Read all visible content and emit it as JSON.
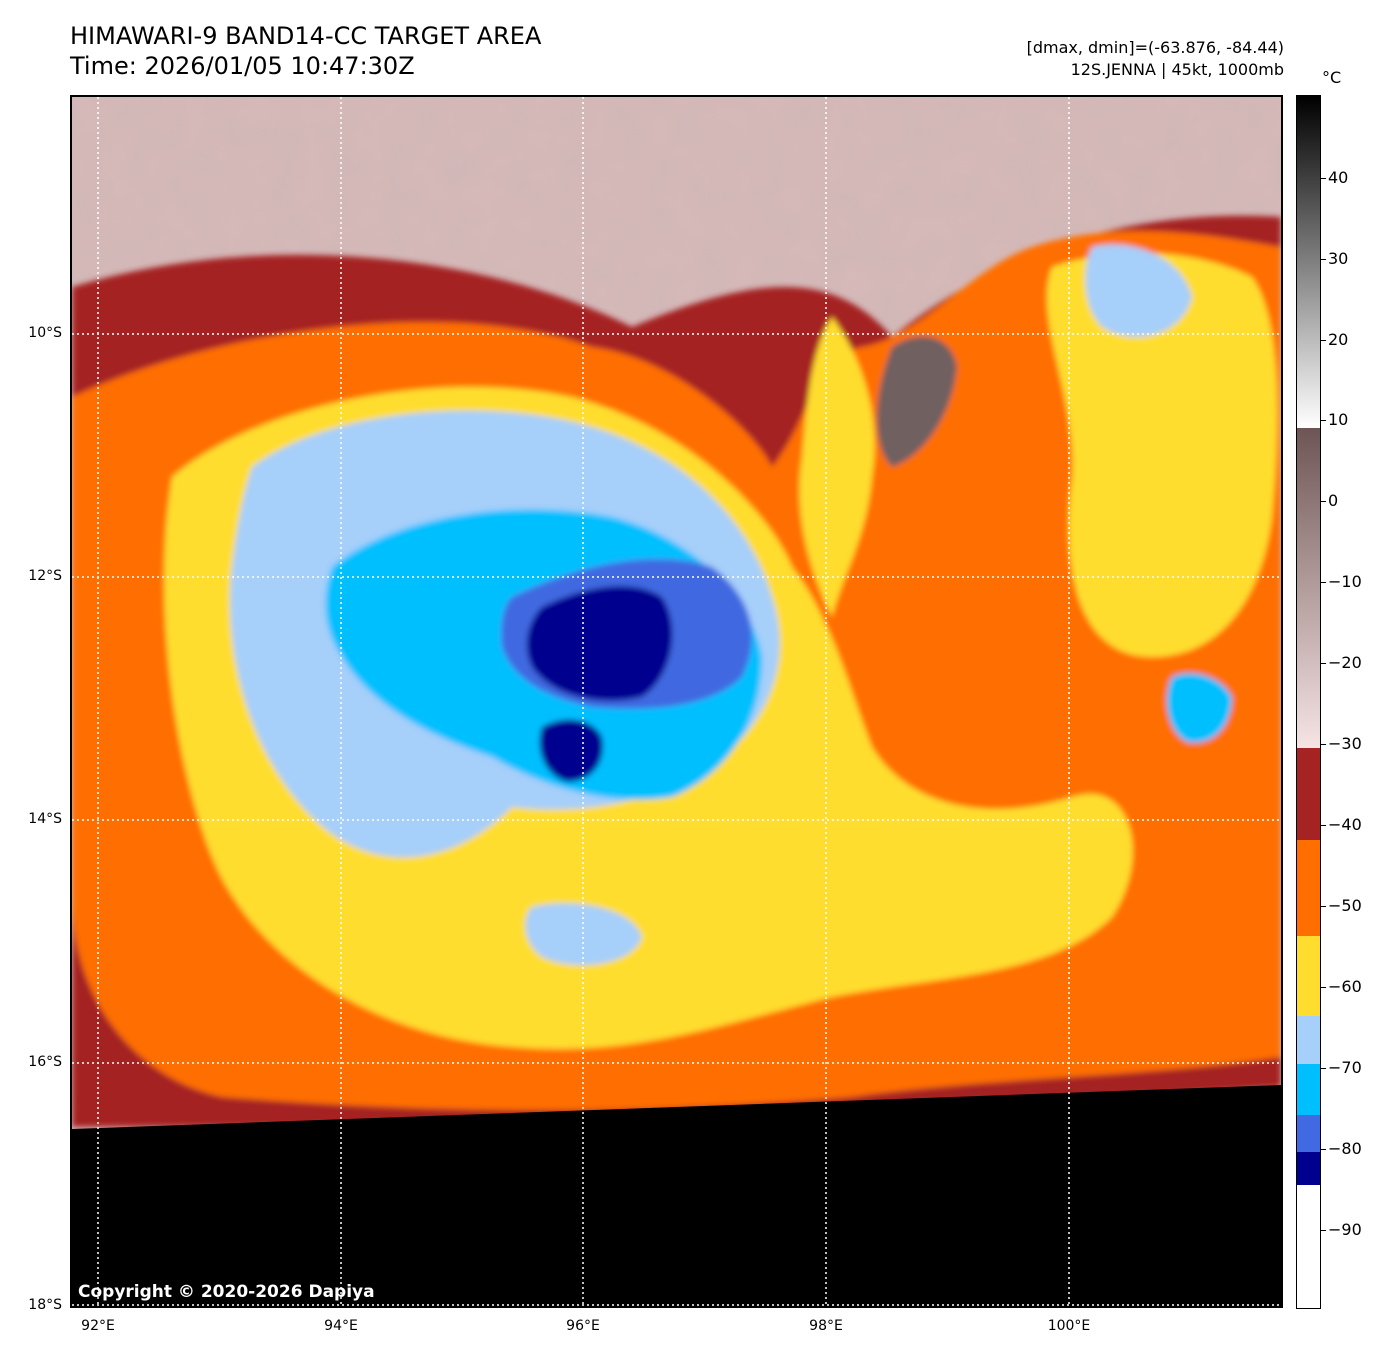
{
  "header": {
    "title": "HIMAWARI-9 BAND14-CC TARGET AREA",
    "time": "Time: 2026/01/05 10:47:30Z",
    "dmax_dmin": "[dmax, dmin]=(-63.876, -84.44)",
    "storm": "12S.JENNA | 45kt, 1000mb"
  },
  "map": {
    "copyright": "Copyright © 2020-2026 Dapiya",
    "lat_labels": [
      "10°S",
      "12°S",
      "14°S",
      "16°S",
      "18°S"
    ],
    "lon_labels": [
      "92°E",
      "94°E",
      "96°E",
      "98°E",
      "100°E"
    ]
  },
  "colorbar": {
    "unit": "°C",
    "ticks": [
      "40",
      "30",
      "20",
      "10",
      "0",
      "−10",
      "−20",
      "−30",
      "−40",
      "−50",
      "−60",
      "−70",
      "−80",
      "−90"
    ],
    "colors": {
      "warm_black": "#000000",
      "warm_white": "#ffffff",
      "mid_gray": "#7a6262",
      "pink": "#f3dcdc",
      "dark_red": "#a52323",
      "orange": "#ff6e00",
      "yellow": "#ffdd2e",
      "light_blue": "#a6cffa",
      "cyan": "#00bfff",
      "royal_blue": "#4169e1",
      "navy": "#00008f"
    }
  }
}
